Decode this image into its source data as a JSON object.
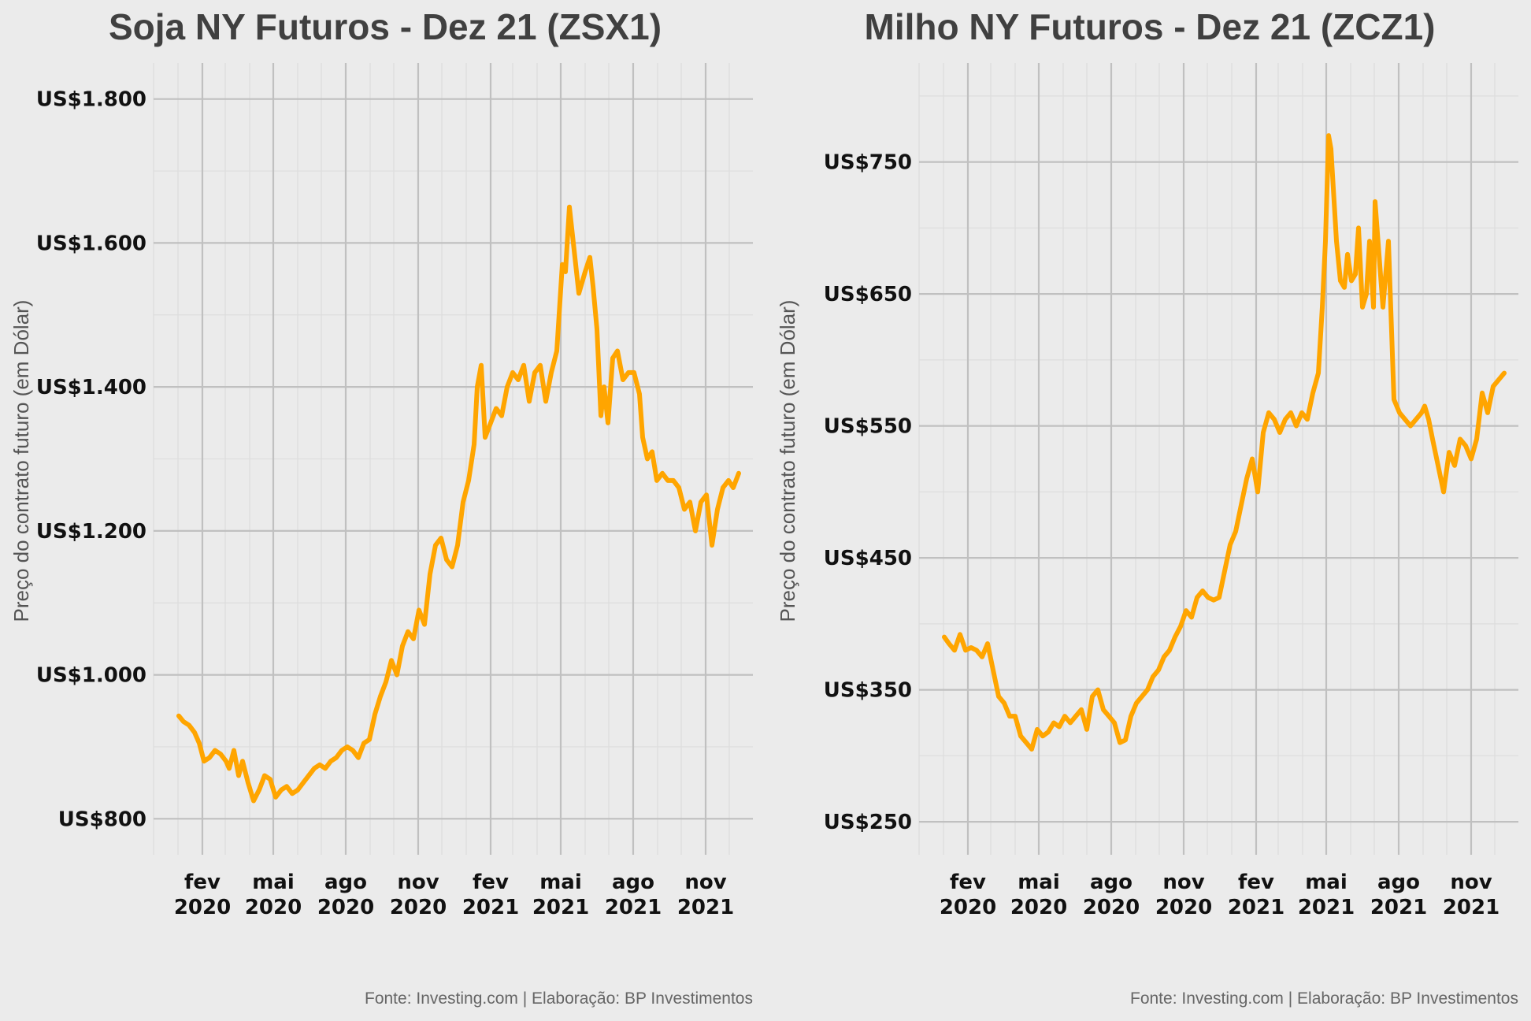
{
  "colors": {
    "background": "#ebebeb",
    "gridline_major": "#c0c0c0",
    "gridline_minor": "#dddddd",
    "line": "#ffa500"
  },
  "chart_data": [
    {
      "type": "line",
      "title": "Soja NY Futuros - Dez 21 (ZSX1)",
      "ylabel": "Preço do contrato futuro (em Dólar)",
      "caption": "Fonte: Investing.com | Elaboração: BP Investimentos",
      "ylim": [
        750,
        1850
      ],
      "xlim": [
        "2019-12-01",
        "2021-12-31"
      ],
      "yticks": [
        800,
        1000,
        1200,
        1400,
        1600,
        1800
      ],
      "ytick_labels": [
        "US$800",
        "US$1.000",
        "US$1.200",
        "US$1.400",
        "US$1.600",
        "US$1.800"
      ],
      "xticks": [
        {
          "date": "2020-02-01",
          "month": "fev",
          "year": "2020"
        },
        {
          "date": "2020-05-01",
          "month": "mai",
          "year": "2020"
        },
        {
          "date": "2020-08-01",
          "month": "ago",
          "year": "2020"
        },
        {
          "date": "2020-11-01",
          "month": "nov",
          "year": "2020"
        },
        {
          "date": "2021-02-01",
          "month": "fev",
          "year": "2021"
        },
        {
          "date": "2021-05-01",
          "month": "mai",
          "year": "2021"
        },
        {
          "date": "2021-08-01",
          "month": "ago",
          "year": "2021"
        },
        {
          "date": "2021-11-01",
          "month": "nov",
          "year": "2021"
        }
      ],
      "grid": true,
      "series": [
        {
          "x": [
            "2020-01-02",
            "2020-01-08",
            "2020-01-15",
            "2020-01-22",
            "2020-01-28",
            "2020-02-03",
            "2020-02-10",
            "2020-02-17",
            "2020-02-24",
            "2020-03-02",
            "2020-03-06",
            "2020-03-12",
            "2020-03-18",
            "2020-03-23",
            "2020-03-30",
            "2020-04-06",
            "2020-04-13",
            "2020-04-20",
            "2020-04-27",
            "2020-05-04",
            "2020-05-11",
            "2020-05-18",
            "2020-05-25",
            "2020-06-01",
            "2020-06-08",
            "2020-06-15",
            "2020-06-22",
            "2020-06-29",
            "2020-07-06",
            "2020-07-13",
            "2020-07-20",
            "2020-07-27",
            "2020-08-03",
            "2020-08-10",
            "2020-08-17",
            "2020-08-24",
            "2020-08-31",
            "2020-09-07",
            "2020-09-14",
            "2020-09-21",
            "2020-09-28",
            "2020-10-05",
            "2020-10-12",
            "2020-10-19",
            "2020-10-26",
            "2020-11-02",
            "2020-11-09",
            "2020-11-16",
            "2020-11-23",
            "2020-11-30",
            "2020-12-07",
            "2020-12-14",
            "2020-12-21",
            "2020-12-28",
            "2021-01-04",
            "2021-01-11",
            "2021-01-15",
            "2021-01-20",
            "2021-01-25",
            "2021-02-01",
            "2021-02-08",
            "2021-02-15",
            "2021-02-22",
            "2021-03-01",
            "2021-03-08",
            "2021-03-15",
            "2021-03-22",
            "2021-03-29",
            "2021-04-05",
            "2021-04-12",
            "2021-04-19",
            "2021-04-26",
            "2021-05-03",
            "2021-05-07",
            "2021-05-12",
            "2021-05-18",
            "2021-05-24",
            "2021-06-01",
            "2021-06-07",
            "2021-06-11",
            "2021-06-16",
            "2021-06-21",
            "2021-06-25",
            "2021-06-30",
            "2021-07-06",
            "2021-07-12",
            "2021-07-19",
            "2021-07-26",
            "2021-08-02",
            "2021-08-09",
            "2021-08-13",
            "2021-08-19",
            "2021-08-25",
            "2021-08-31",
            "2021-09-07",
            "2021-09-14",
            "2021-09-21",
            "2021-09-28",
            "2021-10-05",
            "2021-10-12",
            "2021-10-19",
            "2021-10-26",
            "2021-11-02",
            "2021-11-09",
            "2021-11-16",
            "2021-11-23",
            "2021-11-30",
            "2021-12-06",
            "2021-12-13"
          ],
          "values": [
            943,
            935,
            930,
            920,
            905,
            880,
            885,
            895,
            890,
            880,
            870,
            895,
            860,
            880,
            850,
            825,
            840,
            860,
            855,
            830,
            840,
            845,
            835,
            840,
            850,
            860,
            870,
            875,
            870,
            880,
            885,
            895,
            900,
            895,
            885,
            905,
            910,
            945,
            970,
            990,
            1020,
            1000,
            1040,
            1060,
            1050,
            1090,
            1070,
            1140,
            1180,
            1190,
            1160,
            1150,
            1180,
            1240,
            1270,
            1320,
            1400,
            1430,
            1330,
            1350,
            1370,
            1360,
            1400,
            1420,
            1410,
            1430,
            1380,
            1420,
            1430,
            1380,
            1420,
            1450,
            1570,
            1560,
            1650,
            1590,
            1530,
            1560,
            1580,
            1540,
            1480,
            1360,
            1400,
            1350,
            1440,
            1450,
            1410,
            1420,
            1420,
            1390,
            1330,
            1300,
            1310,
            1270,
            1280,
            1270,
            1270,
            1260,
            1230,
            1240,
            1200,
            1240,
            1250,
            1180,
            1230,
            1260,
            1270,
            1260,
            1280
          ]
        }
      ]
    },
    {
      "type": "line",
      "title": "Milho NY Futuros - Dez 21 (ZCZ1)",
      "ylabel": "Preço do contrato futuro (em Dólar)",
      "caption": "Fonte: Investing.com | Elaboração: BP Investimentos",
      "ylim": [
        225,
        825
      ],
      "xlim": [
        "2019-12-01",
        "2021-12-31"
      ],
      "yticks": [
        250,
        350,
        450,
        550,
        650,
        750
      ],
      "ytick_labels": [
        "US$250",
        "US$350",
        "US$450",
        "US$550",
        "US$650",
        "US$750"
      ],
      "xticks": [
        {
          "date": "2020-02-01",
          "month": "fev",
          "year": "2020"
        },
        {
          "date": "2020-05-01",
          "month": "mai",
          "year": "2020"
        },
        {
          "date": "2020-08-01",
          "month": "ago",
          "year": "2020"
        },
        {
          "date": "2020-11-01",
          "month": "nov",
          "year": "2020"
        },
        {
          "date": "2021-02-01",
          "month": "fev",
          "year": "2021"
        },
        {
          "date": "2021-05-01",
          "month": "mai",
          "year": "2021"
        },
        {
          "date": "2021-08-01",
          "month": "ago",
          "year": "2021"
        },
        {
          "date": "2021-11-01",
          "month": "nov",
          "year": "2021"
        }
      ],
      "grid": true,
      "series": [
        {
          "x": [
            "2020-01-02",
            "2020-01-08",
            "2020-01-15",
            "2020-01-22",
            "2020-01-29",
            "2020-02-05",
            "2020-02-12",
            "2020-02-19",
            "2020-02-26",
            "2020-03-04",
            "2020-03-11",
            "2020-03-18",
            "2020-03-25",
            "2020-04-01",
            "2020-04-08",
            "2020-04-15",
            "2020-04-22",
            "2020-04-29",
            "2020-05-06",
            "2020-05-13",
            "2020-05-20",
            "2020-05-27",
            "2020-06-03",
            "2020-06-10",
            "2020-06-17",
            "2020-06-24",
            "2020-07-01",
            "2020-07-08",
            "2020-07-15",
            "2020-07-22",
            "2020-07-29",
            "2020-08-05",
            "2020-08-12",
            "2020-08-19",
            "2020-08-26",
            "2020-09-02",
            "2020-09-09",
            "2020-09-16",
            "2020-09-23",
            "2020-09-30",
            "2020-10-07",
            "2020-10-14",
            "2020-10-21",
            "2020-10-28",
            "2020-11-04",
            "2020-11-11",
            "2020-11-18",
            "2020-11-25",
            "2020-12-02",
            "2020-12-09",
            "2020-12-16",
            "2020-12-23",
            "2020-12-30",
            "2021-01-06",
            "2021-01-13",
            "2021-01-20",
            "2021-01-27",
            "2021-02-03",
            "2021-02-10",
            "2021-02-17",
            "2021-02-24",
            "2021-03-03",
            "2021-03-10",
            "2021-03-17",
            "2021-03-24",
            "2021-03-31",
            "2021-04-07",
            "2021-04-14",
            "2021-04-21",
            "2021-04-26",
            "2021-04-30",
            "2021-05-04",
            "2021-05-07",
            "2021-05-11",
            "2021-05-14",
            "2021-05-19",
            "2021-05-24",
            "2021-05-28",
            "2021-06-02",
            "2021-06-07",
            "2021-06-11",
            "2021-06-16",
            "2021-06-21",
            "2021-06-25",
            "2021-06-30",
            "2021-07-02",
            "2021-07-07",
            "2021-07-12",
            "2021-07-19",
            "2021-07-26",
            "2021-08-02",
            "2021-08-09",
            "2021-08-16",
            "2021-08-23",
            "2021-08-30",
            "2021-09-03",
            "2021-09-08",
            "2021-09-13",
            "2021-09-20",
            "2021-09-27",
            "2021-10-04",
            "2021-10-11",
            "2021-10-18",
            "2021-10-25",
            "2021-11-01",
            "2021-11-08",
            "2021-11-15",
            "2021-11-22",
            "2021-11-29",
            "2021-12-06",
            "2021-12-13"
          ],
          "values": [
            390,
            385,
            380,
            392,
            380,
            382,
            380,
            375,
            385,
            365,
            345,
            340,
            330,
            330,
            315,
            310,
            305,
            320,
            315,
            318,
            325,
            322,
            330,
            325,
            330,
            335,
            320,
            345,
            350,
            335,
            330,
            325,
            310,
            312,
            330,
            340,
            345,
            350,
            360,
            365,
            375,
            380,
            390,
            398,
            410,
            405,
            420,
            425,
            420,
            418,
            420,
            440,
            460,
            470,
            490,
            510,
            525,
            500,
            545,
            560,
            555,
            545,
            555,
            560,
            550,
            560,
            555,
            575,
            590,
            640,
            690,
            770,
            760,
            720,
            690,
            660,
            655,
            680,
            660,
            665,
            700,
            640,
            650,
            690,
            640,
            720,
            680,
            640,
            690,
            570,
            560,
            555,
            550,
            555,
            560,
            565,
            555,
            540,
            520,
            500,
            530,
            520,
            540,
            535,
            525,
            540,
            575,
            560,
            580,
            585,
            590
          ]
        }
      ]
    }
  ]
}
